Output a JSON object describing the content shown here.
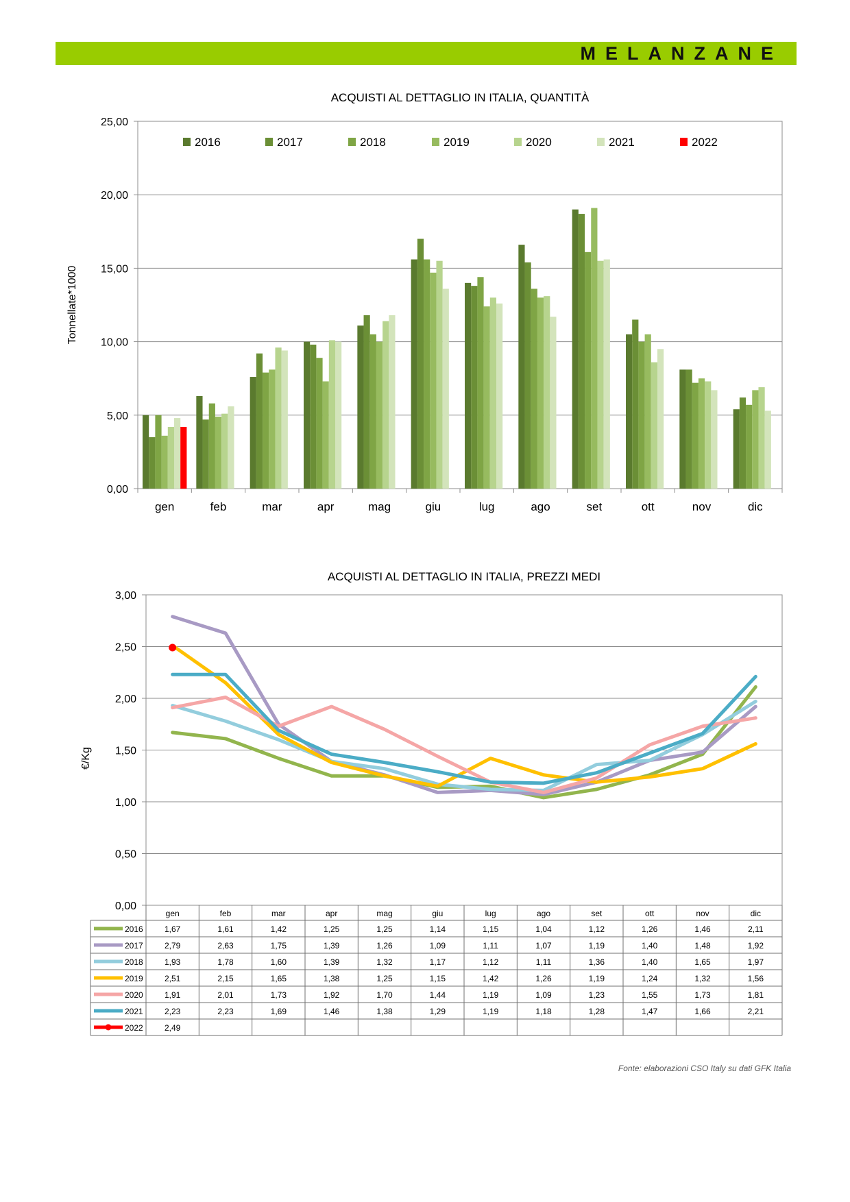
{
  "header": {
    "title": "MELANZANE"
  },
  "source_note": "Fonte: elaborazioni CSO Italy su dati GFK Italia",
  "colors": {
    "banner": "#99cc00",
    "bars": [
      "#5a7a2e",
      "#6b8f36",
      "#7fa545",
      "#97bb5f",
      "#b7d48e",
      "#d3e4bb",
      "#ff0000"
    ],
    "lines": [
      "#92b54d",
      "#a89ac4",
      "#93cddd",
      "#ffc000",
      "#f5a6a6",
      "#4bacc6",
      "#ff0000"
    ]
  },
  "chart_data": [
    {
      "type": "bar",
      "title": "ACQUISTI AL DETTAGLIO IN ITALIA, QUANTITÀ",
      "xlabel": "",
      "ylabel": "Tonnellate*1000",
      "ylim": [
        0,
        25
      ],
      "yticks": [
        "0,00",
        "5,00",
        "10,00",
        "15,00",
        "20,00",
        "25,00"
      ],
      "grid": true,
      "legend_position": "top",
      "categories": [
        "gen",
        "feb",
        "mar",
        "apr",
        "mag",
        "giu",
        "lug",
        "ago",
        "set",
        "ott",
        "nov",
        "dic"
      ],
      "series": [
        {
          "name": "2016",
          "values": [
            5.0,
            6.3,
            7.6,
            10.0,
            11.1,
            15.6,
            14.0,
            16.6,
            19.0,
            10.5,
            8.1,
            5.4
          ]
        },
        {
          "name": "2017",
          "values": [
            3.5,
            4.7,
            9.2,
            9.8,
            11.8,
            17.0,
            13.8,
            15.4,
            18.7,
            11.5,
            8.1,
            6.2
          ]
        },
        {
          "name": "2018",
          "values": [
            5.0,
            5.8,
            7.9,
            8.9,
            10.5,
            15.6,
            14.4,
            13.6,
            16.1,
            10.0,
            7.2,
            5.7
          ]
        },
        {
          "name": "2019",
          "values": [
            3.6,
            4.9,
            8.1,
            7.3,
            10.0,
            14.7,
            12.4,
            13.0,
            19.1,
            10.5,
            7.5,
            6.7
          ]
        },
        {
          "name": "2020",
          "values": [
            4.2,
            5.1,
            9.6,
            10.1,
            11.4,
            15.5,
            13.0,
            13.1,
            15.5,
            8.6,
            7.3,
            6.9
          ]
        },
        {
          "name": "2021",
          "values": [
            4.8,
            5.6,
            9.4,
            10.0,
            11.8,
            13.6,
            12.6,
            11.7,
            15.6,
            9.5,
            6.7,
            5.3
          ]
        },
        {
          "name": "2022",
          "values": [
            4.2,
            null,
            null,
            null,
            null,
            null,
            null,
            null,
            null,
            null,
            null,
            null
          ]
        }
      ]
    },
    {
      "type": "line",
      "title": "ACQUISTI AL DETTAGLIO IN ITALIA, PREZZI MEDI",
      "xlabel": "",
      "ylabel": "€/Kg",
      "ylim": [
        0,
        3
      ],
      "yticks": [
        "0,00",
        "0,50",
        "1,00",
        "1,50",
        "2,00",
        "2,50",
        "3,00"
      ],
      "grid": true,
      "legend_position": "data-table",
      "categories": [
        "gen",
        "feb",
        "mar",
        "apr",
        "mag",
        "giu",
        "lug",
        "ago",
        "set",
        "ott",
        "nov",
        "dic"
      ],
      "series": [
        {
          "name": "2016",
          "values": [
            1.67,
            1.61,
            1.42,
            1.25,
            1.25,
            1.14,
            1.15,
            1.04,
            1.12,
            1.26,
            1.46,
            2.11
          ],
          "labels": [
            "1,67",
            "1,61",
            "1,42",
            "1,25",
            "1,25",
            "1,14",
            "1,15",
            "1,04",
            "1,12",
            "1,26",
            "1,46",
            "2,11"
          ]
        },
        {
          "name": "2017",
          "values": [
            2.79,
            2.63,
            1.75,
            1.39,
            1.26,
            1.09,
            1.11,
            1.07,
            1.19,
            1.4,
            1.48,
            1.92
          ],
          "labels": [
            "2,79",
            "2,63",
            "1,75",
            "1,39",
            "1,26",
            "1,09",
            "1,11",
            "1,07",
            "1,19",
            "1,40",
            "1,48",
            "1,92"
          ]
        },
        {
          "name": "2018",
          "values": [
            1.93,
            1.78,
            1.6,
            1.39,
            1.32,
            1.17,
            1.12,
            1.11,
            1.36,
            1.4,
            1.65,
            1.97
          ],
          "labels": [
            "1,93",
            "1,78",
            "1,60",
            "1,39",
            "1,32",
            "1,17",
            "1,12",
            "1,11",
            "1,36",
            "1,40",
            "1,65",
            "1,97"
          ]
        },
        {
          "name": "2019",
          "values": [
            2.51,
            2.15,
            1.65,
            1.38,
            1.25,
            1.15,
            1.42,
            1.26,
            1.19,
            1.24,
            1.32,
            1.56
          ],
          "labels": [
            "2,51",
            "2,15",
            "1,65",
            "1,38",
            "1,25",
            "1,15",
            "1,42",
            "1,26",
            "1,19",
            "1,24",
            "1,32",
            "1,56"
          ]
        },
        {
          "name": "2020",
          "values": [
            1.91,
            2.01,
            1.73,
            1.92,
            1.7,
            1.44,
            1.19,
            1.09,
            1.23,
            1.55,
            1.73,
            1.81
          ],
          "labels": [
            "1,91",
            "2,01",
            "1,73",
            "1,92",
            "1,70",
            "1,44",
            "1,19",
            "1,09",
            "1,23",
            "1,55",
            "1,73",
            "1,81"
          ]
        },
        {
          "name": "2021",
          "values": [
            2.23,
            2.23,
            1.69,
            1.46,
            1.38,
            1.29,
            1.19,
            1.18,
            1.28,
            1.47,
            1.66,
            2.21
          ],
          "labels": [
            "2,23",
            "2,23",
            "1,69",
            "1,46",
            "1,38",
            "1,29",
            "1,19",
            "1,18",
            "1,28",
            "1,47",
            "1,66",
            "2,21"
          ]
        },
        {
          "name": "2022",
          "values": [
            2.49,
            null,
            null,
            null,
            null,
            null,
            null,
            null,
            null,
            null,
            null,
            null
          ],
          "labels": [
            "2,49",
            "",
            "",
            "",
            "",
            "",
            "",
            "",
            "",
            "",
            "",
            ""
          ]
        }
      ]
    }
  ]
}
